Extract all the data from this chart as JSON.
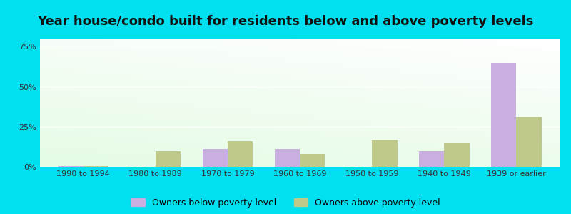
{
  "title": "Year house/condo built for residents below and above poverty levels",
  "categories": [
    "1990 to 1994",
    "1980 to 1989",
    "1970 to 1979",
    "1960 to 1969",
    "1950 to 1959",
    "1940 to 1949",
    "1939 or earlier"
  ],
  "below_poverty": [
    0.5,
    0.0,
    11.0,
    11.0,
    0.0,
    10.0,
    65.0
  ],
  "above_poverty": [
    0.5,
    10.0,
    16.0,
    8.0,
    17.0,
    15.0,
    31.0
  ],
  "below_color": "#c9aee0",
  "above_color": "#bec98a",
  "background_outer": "#00e0f0",
  "ylim": [
    0,
    80
  ],
  "yticks": [
    0,
    25,
    50,
    75
  ],
  "ytick_labels": [
    "0%",
    "25%",
    "50%",
    "75%"
  ],
  "legend_below": "Owners below poverty level",
  "legend_above": "Owners above poverty level",
  "title_fontsize": 13,
  "tick_fontsize": 8,
  "legend_fontsize": 9,
  "bar_width": 0.35
}
